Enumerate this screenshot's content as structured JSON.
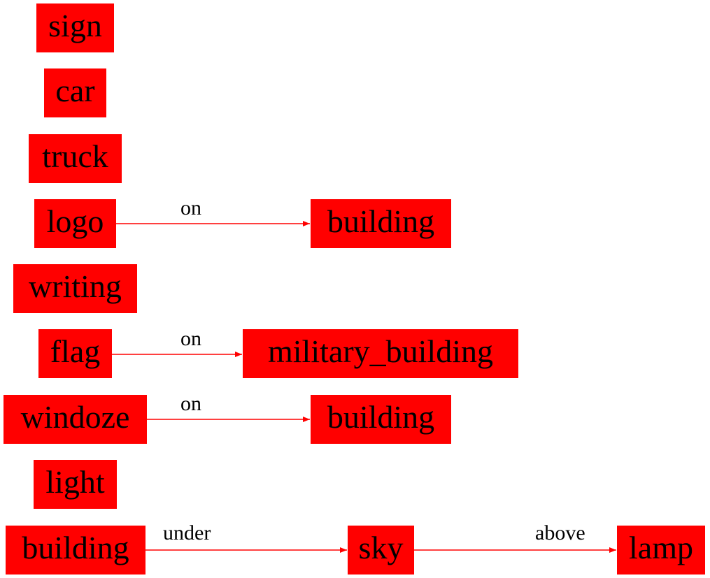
{
  "nodes": {
    "sign": "sign",
    "car": "car",
    "truck": "truck",
    "logo": "logo",
    "building_1": "building",
    "writing": "writing",
    "flag": "flag",
    "military_building": "military_building",
    "windoze": "windoze",
    "building_2": "building",
    "light": "light",
    "building_3": "building",
    "sky": "sky",
    "lamp": "lamp"
  },
  "edges": {
    "logo_building": "on",
    "flag_military_building": "on",
    "windoze_building": "on",
    "building_sky": "under",
    "sky_lamp": "above"
  },
  "colors": {
    "node_fill": "#ff0000",
    "edge": "#ff0000",
    "text": "#000000"
  }
}
